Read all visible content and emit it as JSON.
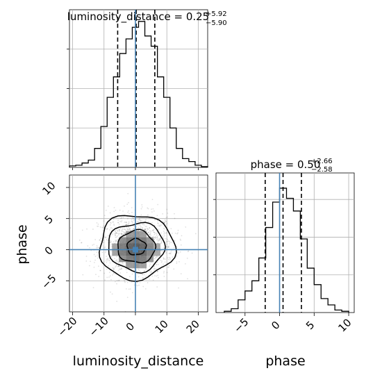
{
  "chart_data": [
    {
      "type": "histogram",
      "panel": "luminosity_distance marginal",
      "title": {
        "param": "luminosity_distance",
        "median": "0.25",
        "upper": "+5.92",
        "lower": "−5.90"
      },
      "truth": 0.0,
      "quantiles": [
        -5.65,
        0.25,
        6.17
      ],
      "xlim": [
        -21,
        23
      ],
      "bin_edges": [
        -21,
        -19,
        -17,
        -15,
        -13,
        -11,
        -9,
        -7,
        -5,
        -3,
        -1,
        1,
        3,
        5,
        7,
        9,
        11,
        13,
        15,
        17,
        19,
        21,
        23
      ],
      "values": [
        0.01,
        0.015,
        0.03,
        0.05,
        0.13,
        0.28,
        0.48,
        0.62,
        0.78,
        0.88,
        0.96,
        1.0,
        0.9,
        0.83,
        0.62,
        0.48,
        0.27,
        0.13,
        0.06,
        0.04,
        0.015,
        0.005
      ],
      "ylim": [
        0,
        1.08
      ]
    },
    {
      "type": "histogram",
      "panel": "phase marginal",
      "title": {
        "param": "phase",
        "median": "0.50",
        "upper": "+2.66",
        "lower": "−2.58"
      },
      "truth": 0.0,
      "quantiles": [
        -2.08,
        0.5,
        3.16
      ],
      "xlim": [
        -9.2,
        10.8
      ],
      "bin_edges": [
        -8,
        -7,
        -6,
        -5,
        -4,
        -3,
        -2,
        -1,
        0,
        1,
        2,
        3,
        4,
        5,
        6,
        7,
        8,
        9,
        10
      ],
      "values": [
        0.01,
        0.03,
        0.1,
        0.17,
        0.25,
        0.43,
        0.67,
        0.87,
        0.98,
        0.9,
        0.8,
        0.58,
        0.35,
        0.22,
        0.11,
        0.06,
        0.02,
        0.01
      ],
      "ylim": [
        0,
        1.1
      ]
    },
    {
      "type": "scatter",
      "panel": "2D posterior",
      "xlabel": "luminosity_distance",
      "ylabel": "phase",
      "xlim": [
        -21,
        23
      ],
      "ylim": [
        -10,
        12
      ],
      "truth": [
        0,
        0
      ],
      "xticks": [
        -20,
        -10,
        0,
        10,
        20
      ],
      "yticks": [
        -5,
        0,
        5,
        10
      ],
      "sigma": [
        6.0,
        2.6
      ]
    },
    {
      "type": "axis",
      "panel": "phase marginal x-axis",
      "xlabel": "phase",
      "xticks": [
        -5,
        0,
        5,
        10
      ]
    }
  ],
  "xlabel_lum": "luminosity_distance",
  "xlabel_phase": "phase",
  "ylabel_phase": "phase",
  "ticks_lum": [
    "−20",
    "−10",
    "0",
    "10",
    "20"
  ],
  "ticks_phase_y": [
    "−5",
    "0",
    "5",
    "10"
  ],
  "ticks_phase_x": [
    "−5",
    "0",
    "5",
    "10"
  ],
  "colors": {
    "truth": "#4682b4",
    "hist": "#000000",
    "grid": "#b0b0b0",
    "points": "#000000"
  }
}
